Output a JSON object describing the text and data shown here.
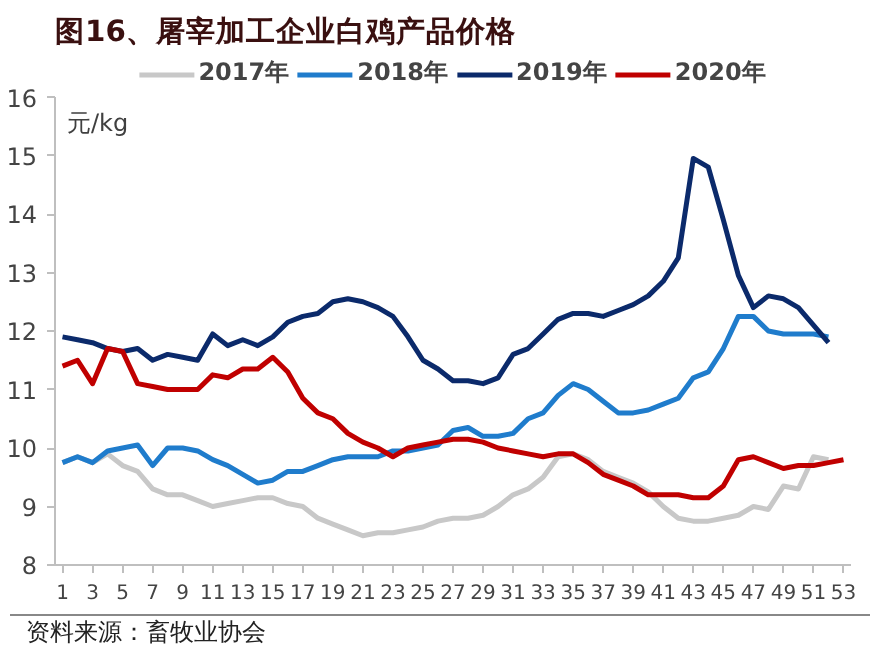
{
  "chart_data": {
    "type": "line",
    "title": "图16、屠宰加工企业白鸡产品价格",
    "ylabel": "元/kg",
    "annotations": [
      "资料来源：畜牧业协会"
    ],
    "x": [
      1,
      2,
      3,
      4,
      5,
      6,
      7,
      8,
      9,
      10,
      11,
      12,
      13,
      14,
      15,
      16,
      17,
      18,
      19,
      20,
      21,
      22,
      23,
      24,
      25,
      26,
      27,
      28,
      29,
      30,
      31,
      32,
      33,
      34,
      35,
      36,
      37,
      38,
      39,
      40,
      41,
      42,
      43,
      44,
      45,
      46,
      47,
      48,
      49,
      50,
      51,
      52,
      53
    ],
    "series": [
      {
        "name": "2017年",
        "color": "#c8c8c8",
        "values": [
          9.75,
          9.85,
          9.75,
          9.9,
          9.7,
          9.6,
          9.3,
          9.2,
          9.2,
          9.1,
          9.0,
          9.05,
          9.1,
          9.15,
          9.15,
          9.05,
          9.0,
          8.8,
          8.7,
          8.6,
          8.5,
          8.55,
          8.55,
          8.6,
          8.65,
          8.75,
          8.8,
          8.8,
          8.85,
          9.0,
          9.2,
          9.3,
          9.5,
          9.85,
          9.9,
          9.8,
          9.6,
          9.5,
          9.4,
          9.25,
          9.0,
          8.8,
          8.75,
          8.75,
          8.8,
          8.85,
          9.0,
          8.95,
          9.35,
          9.3,
          9.85,
          9.8,
          null
        ]
      },
      {
        "name": "2018年",
        "color": "#1f7ccc",
        "values": [
          9.75,
          9.85,
          9.75,
          9.95,
          10.0,
          10.05,
          9.7,
          10.0,
          10.0,
          9.95,
          9.8,
          9.7,
          9.55,
          9.4,
          9.45,
          9.6,
          9.6,
          9.7,
          9.8,
          9.85,
          9.85,
          9.85,
          9.95,
          9.95,
          10.0,
          10.05,
          10.3,
          10.35,
          10.2,
          10.2,
          10.25,
          10.5,
          10.6,
          10.9,
          11.1,
          11.0,
          10.8,
          10.6,
          10.6,
          10.65,
          10.75,
          10.85,
          11.2,
          11.3,
          11.7,
          12.25,
          12.25,
          12.0,
          11.95,
          11.95,
          11.95,
          11.9,
          null
        ]
      },
      {
        "name": "2019年",
        "color": "#0b2a6b",
        "values": [
          11.9,
          11.85,
          11.8,
          11.7,
          11.65,
          11.7,
          11.5,
          11.6,
          11.55,
          11.5,
          11.95,
          11.75,
          11.85,
          11.75,
          11.9,
          12.15,
          12.25,
          12.3,
          12.5,
          12.55,
          12.5,
          12.4,
          12.25,
          11.9,
          11.5,
          11.35,
          11.15,
          11.15,
          11.1,
          11.2,
          11.6,
          11.7,
          11.95,
          12.2,
          12.3,
          12.3,
          12.25,
          12.35,
          12.45,
          12.6,
          12.85,
          13.25,
          14.95,
          14.8,
          13.9,
          12.95,
          12.4,
          12.6,
          12.55,
          12.4,
          12.1,
          11.8,
          null
        ]
      },
      {
        "name": "2020年",
        "color": "#c00000",
        "values": [
          11.4,
          11.5,
          11.1,
          11.7,
          11.65,
          11.1,
          11.05,
          11.0,
          11.0,
          11.0,
          11.25,
          11.2,
          11.35,
          11.35,
          11.55,
          11.3,
          10.85,
          10.6,
          10.5,
          10.25,
          10.1,
          10.0,
          9.85,
          10.0,
          10.05,
          10.1,
          10.15,
          10.15,
          10.1,
          10.0,
          9.95,
          9.9,
          9.85,
          9.9,
          9.9,
          9.75,
          9.55,
          9.45,
          9.35,
          9.2,
          9.2,
          9.2,
          9.15,
          9.15,
          9.35,
          9.8,
          9.85,
          9.75,
          9.65,
          9.7,
          9.7,
          9.75,
          9.8
        ]
      }
    ],
    "xlim": [
      0.5,
      53.5
    ],
    "xticks": [
      1,
      3,
      5,
      7,
      9,
      11,
      13,
      15,
      17,
      19,
      21,
      23,
      25,
      27,
      29,
      31,
      33,
      35,
      37,
      39,
      41,
      43,
      45,
      47,
      49,
      51,
      53
    ],
    "ylim": [
      8,
      16
    ],
    "yticks": [
      8,
      9,
      10,
      11,
      12,
      13,
      14,
      15,
      16
    ],
    "grid": false,
    "legend": "top"
  }
}
